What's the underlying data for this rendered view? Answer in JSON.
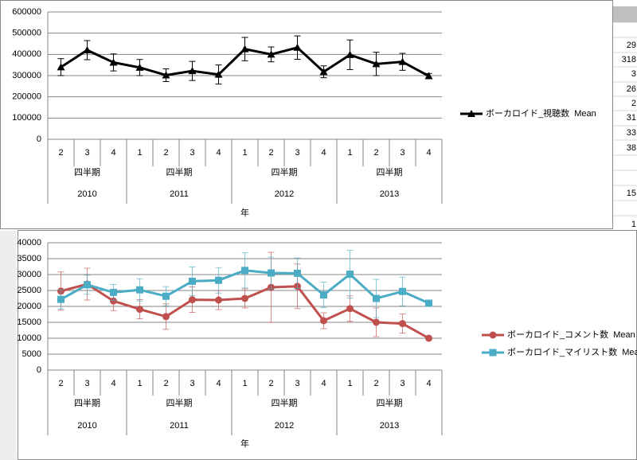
{
  "chart_data": [
    {
      "type": "line",
      "x_title": "年",
      "groups": [
        {
          "year": "2010",
          "label": "四半期",
          "quarters": [
            "2",
            "3",
            "4"
          ]
        },
        {
          "year": "2011",
          "label": "四半期",
          "quarters": [
            "1",
            "2",
            "3",
            "4"
          ]
        },
        {
          "year": "2012",
          "label": "四半期",
          "quarters": [
            "1",
            "2",
            "3",
            "4"
          ]
        },
        {
          "year": "2013",
          "label": "四半期",
          "quarters": [
            "1",
            "2",
            "3",
            "4"
          ]
        }
      ],
      "ylim": [
        0,
        600000
      ],
      "yticks": [
        0,
        100000,
        200000,
        300000,
        400000,
        500000,
        600000
      ],
      "grid": true,
      "series": [
        {
          "name": "ボーカロイド_視聴数  Mean",
          "color": "#000000",
          "marker": "triangle",
          "values": [
            340000,
            420000,
            362000,
            338000,
            302000,
            322000,
            305000,
            425000,
            400000,
            432000,
            318000,
            398000,
            355000,
            365000,
            298000
          ],
          "errors": [
            40000,
            45000,
            40000,
            38000,
            30000,
            45000,
            45000,
            55000,
            35000,
            55000,
            28000,
            70000,
            55000,
            40000,
            12000
          ]
        }
      ]
    },
    {
      "type": "line",
      "x_title": "年",
      "groups": [
        {
          "year": "2010",
          "label": "四半期",
          "quarters": [
            "2",
            "3",
            "4"
          ]
        },
        {
          "year": "2011",
          "label": "四半期",
          "quarters": [
            "1",
            "2",
            "3",
            "4"
          ]
        },
        {
          "year": "2012",
          "label": "四半期",
          "quarters": [
            "1",
            "2",
            "3",
            "4"
          ]
        },
        {
          "year": "2013",
          "label": "四半期",
          "quarters": [
            "1",
            "2",
            "3",
            "4"
          ]
        }
      ],
      "ylim": [
        0,
        40000
      ],
      "yticks": [
        0,
        5000,
        10000,
        15000,
        20000,
        25000,
        30000,
        35000,
        40000
      ],
      "grid": true,
      "series": [
        {
          "name": "ボーカロイド_コメント数  Mean",
          "color": "#c0504d",
          "marker": "circle",
          "values": [
            24800,
            27000,
            21700,
            19100,
            16800,
            22100,
            22000,
            22500,
            26000,
            26300,
            15500,
            19300,
            15000,
            14600,
            10000
          ],
          "errors": [
            6000,
            5000,
            3000,
            3000,
            4000,
            4000,
            3000,
            3000,
            11000,
            7000,
            2500,
            4000,
            4500,
            3000,
            500
          ]
        },
        {
          "name": "ボーカロイド_マイリスト数  Mean",
          "color": "#4bacc6",
          "marker": "square",
          "values": [
            22200,
            26800,
            24400,
            25200,
            23200,
            27900,
            28200,
            31300,
            30500,
            30400,
            23600,
            30100,
            22500,
            24700,
            21000
          ],
          "errors": [
            3000,
            3000,
            2500,
            3500,
            3000,
            4500,
            4000,
            5500,
            5000,
            4800,
            4000,
            7500,
            6000,
            4500,
            500
          ]
        }
      ]
    }
  ],
  "sheet_cells": [
    "29",
    "318",
    "3",
    "26",
    "2",
    "31",
    "33",
    "38",
    "15",
    "1"
  ]
}
